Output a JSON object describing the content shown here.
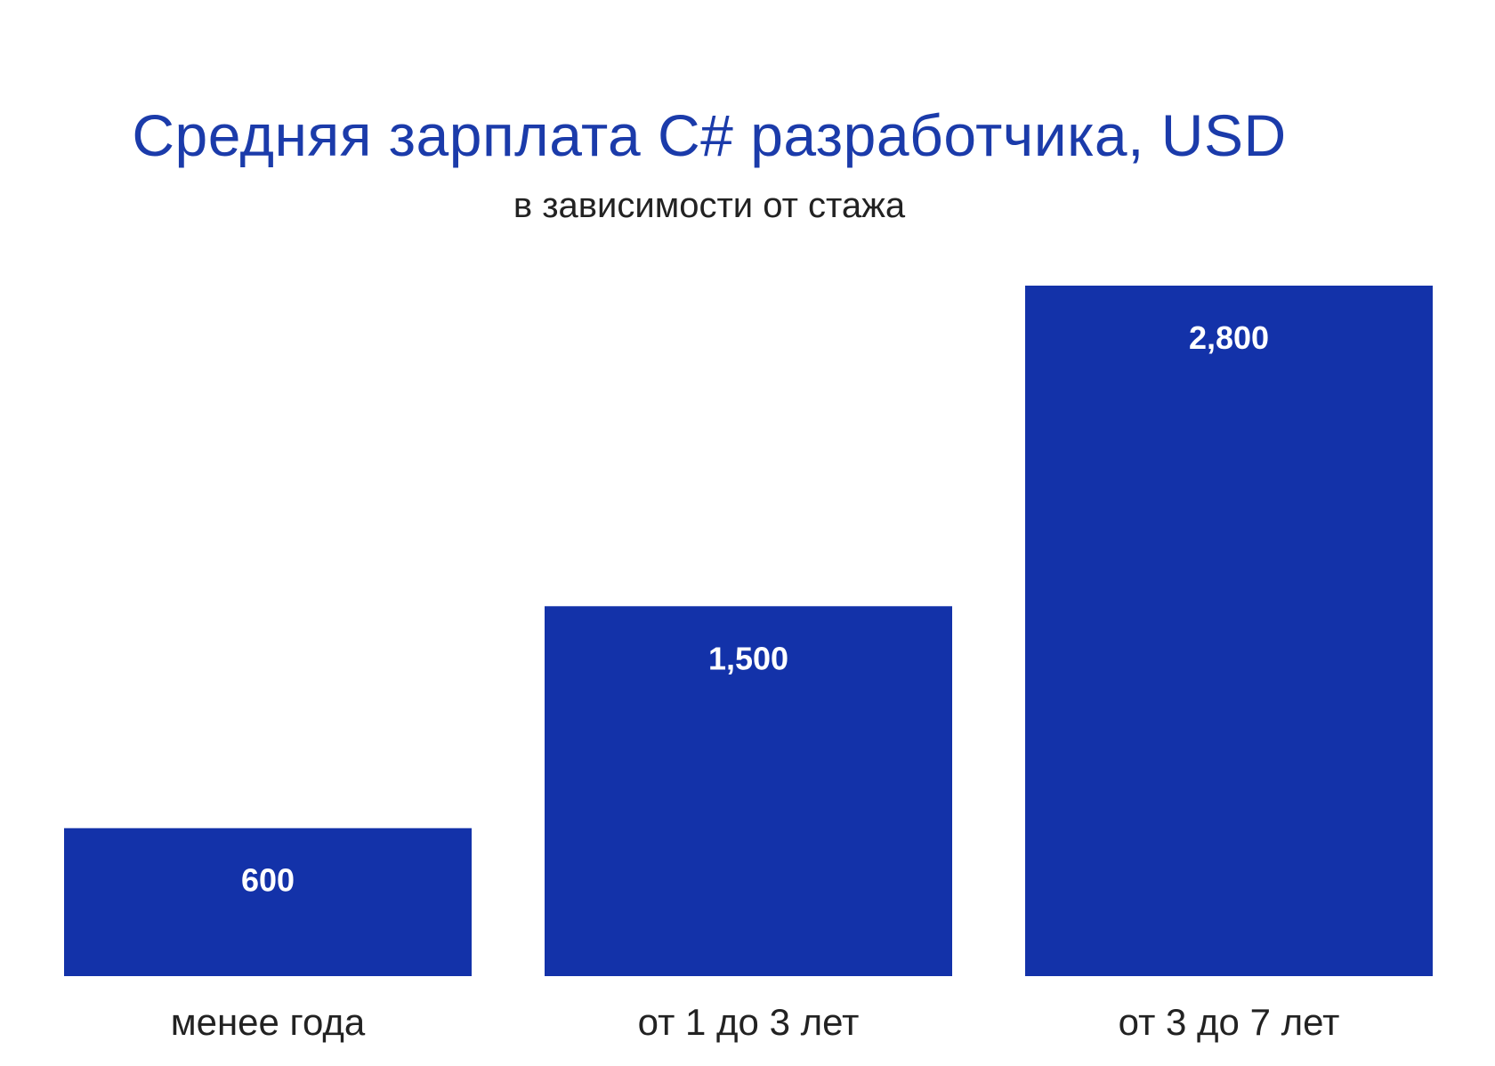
{
  "colors": {
    "title": "#1B3BAA",
    "bar": "#1332A9",
    "bar_label": "#FFFFFF",
    "category_label": "#222222",
    "background": "#FFFFFF"
  },
  "chart_data": {
    "type": "bar",
    "title": "Средняя зарплата C# разработчика, USD",
    "subtitle": "в зависимости от стажа",
    "xlabel": "",
    "ylabel": "",
    "categories": [
      "менее года",
      "от 1 до 3 лет",
      "от 3 до 7 лет"
    ],
    "values": [
      600,
      1500,
      2800
    ],
    "value_labels": [
      "600",
      "1,500",
      "2,800"
    ],
    "ylim": [
      0,
      2800
    ],
    "grid": false,
    "legend": "none"
  }
}
